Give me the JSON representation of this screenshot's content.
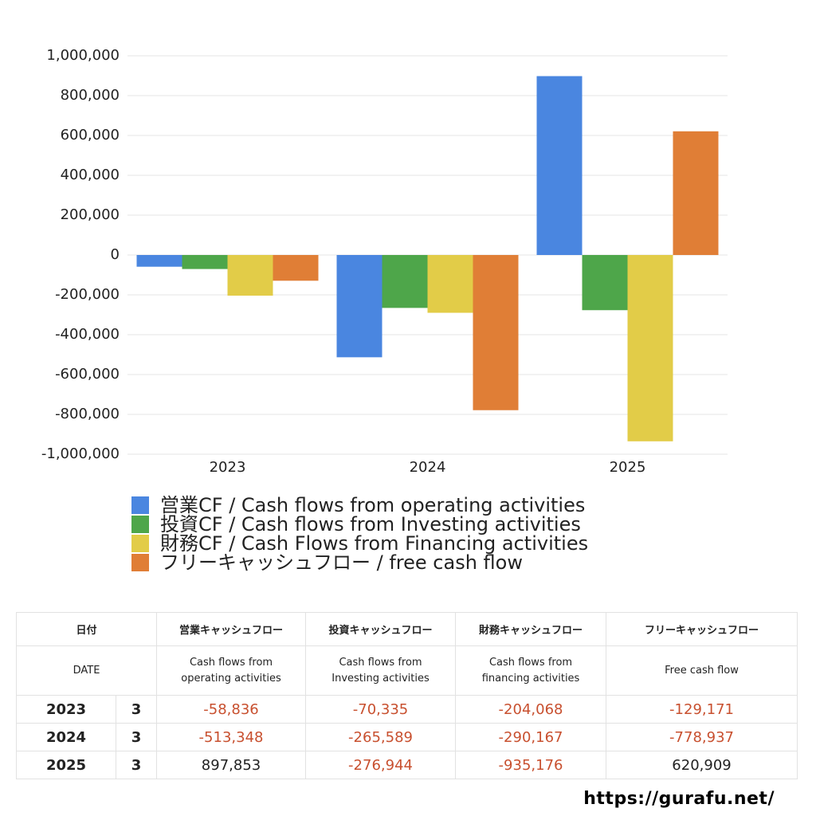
{
  "chart_data": {
    "type": "bar",
    "categories": [
      "2023",
      "2024",
      "2025"
    ],
    "series": [
      {
        "name": "営業CF / Cash flows from operating activities",
        "color": "#4a86e0",
        "values": [
          -58836,
          -513348,
          897853
        ]
      },
      {
        "name": "投資CF / Cash flows from Investing activities",
        "color": "#4ea64a",
        "values": [
          -70335,
          -265589,
          -276944
        ]
      },
      {
        "name": "財務CF / Cash Flows from Financing activities",
        "color": "#e2cc48",
        "values": [
          -204068,
          -290167,
          -935176
        ]
      },
      {
        "name": "フリーキャッシュフロー / free cash flow",
        "color": "#e07e36",
        "values": [
          -129171,
          -778937,
          620909
        ]
      }
    ],
    "ylim": [
      -1000000,
      1000000
    ],
    "yticks": [
      {
        "value": -1000000,
        "label": "-1,000,000"
      },
      {
        "value": -800000,
        "label": "-800,000"
      },
      {
        "value": -600000,
        "label": "-600,000"
      },
      {
        "value": -400000,
        "label": "-400,000"
      },
      {
        "value": -200000,
        "label": "-200,000"
      },
      0,
      {
        "value": 200000,
        "label": "200,000"
      },
      {
        "value": 400000,
        "label": "400,000"
      },
      {
        "value": 600000,
        "label": "600,000"
      },
      {
        "value": 800000,
        "label": "800,000"
      },
      {
        "value": 1000000,
        "label": "1,000,000"
      }
    ],
    "grid": true
  },
  "table": {
    "header": [
      "日付",
      "営業キャッシュフロー",
      "投資キャッシュフロー",
      "財務キャッシュフロー",
      "フリーキャッシュフロー"
    ],
    "subheader": [
      "DATE",
      "Cash flows from\noperating activities",
      "Cash flows from\nInvesting activities",
      "Cash flows from\nfinancing activities",
      "Free cash flow"
    ],
    "rows": [
      [
        "2023",
        "3",
        "-58,836",
        "-70,335",
        "-204,068",
        "-129,171"
      ],
      [
        "2024",
        "3",
        "-513,348",
        "-265,589",
        "-290,167",
        "-778,937"
      ],
      [
        "2025",
        "3",
        "897,853",
        "-276,944",
        "-935,176",
        "620,909"
      ]
    ]
  },
  "footer": "https://gurafu.net/"
}
